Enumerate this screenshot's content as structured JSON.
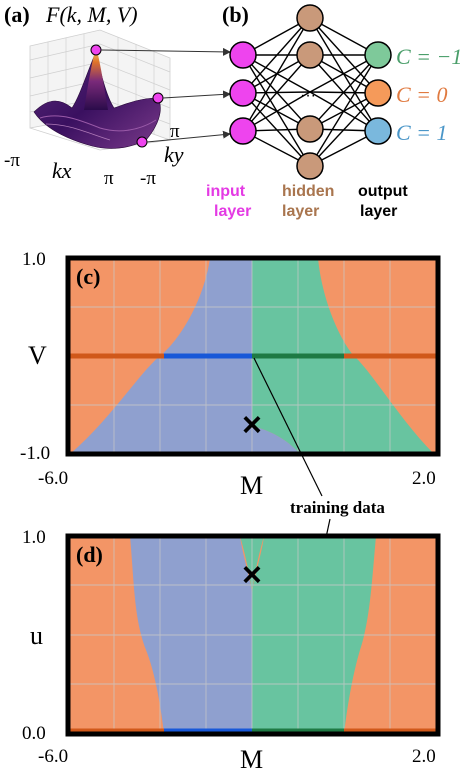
{
  "panel_a": {
    "label": "(a)",
    "title": "F(k, M, V)",
    "kx_min": "-π",
    "kx_max": "π",
    "xlabel": "kx",
    "ky_max": "π",
    "ky_min": "-π",
    "ylabel": "ky",
    "surface_colormap": [
      "#2a0b4a",
      "#7a2a7a",
      "#e0742a",
      "#fbe97a"
    ],
    "sample_point_color": "#ee44ee"
  },
  "panel_b": {
    "label": "(b)",
    "ellipsis": "···",
    "classes": [
      "C = −1",
      "C = 0",
      "C = 1"
    ],
    "layers": {
      "input": [
        "input",
        "layer"
      ],
      "hidden": [
        "hidden",
        "layer"
      ],
      "output": [
        "output",
        "layer"
      ]
    },
    "node_colors": {
      "input": "#ee44ee",
      "hidden": "#c9997a",
      "output": [
        "#7ec99a",
        "#f59a5a",
        "#7ab8dd"
      ]
    },
    "node_counts": {
      "input": 3,
      "hidden": 5,
      "output": 3
    }
  },
  "panel_c": {
    "label": "(c)",
    "marker": "×",
    "ytick_max": "1.0",
    "ytick_min": "-1.0",
    "ylabel": "V",
    "xtick_min": "-6.0",
    "xtick_max": "2.0",
    "xlabel": "M"
  },
  "panel_d": {
    "label": "(d)",
    "marker": "×",
    "ytick_max": "1.0",
    "ytick_min": "0.0",
    "ylabel": "u",
    "xtick_min": "-6.0",
    "xtick_max": "2.0",
    "xlabel": "M"
  },
  "annotation": "training  data",
  "phase_colors": {
    "C_minus1": "#68c4a0",
    "C_0": "#f39566",
    "C_1": "#8fa0cf"
  }
}
